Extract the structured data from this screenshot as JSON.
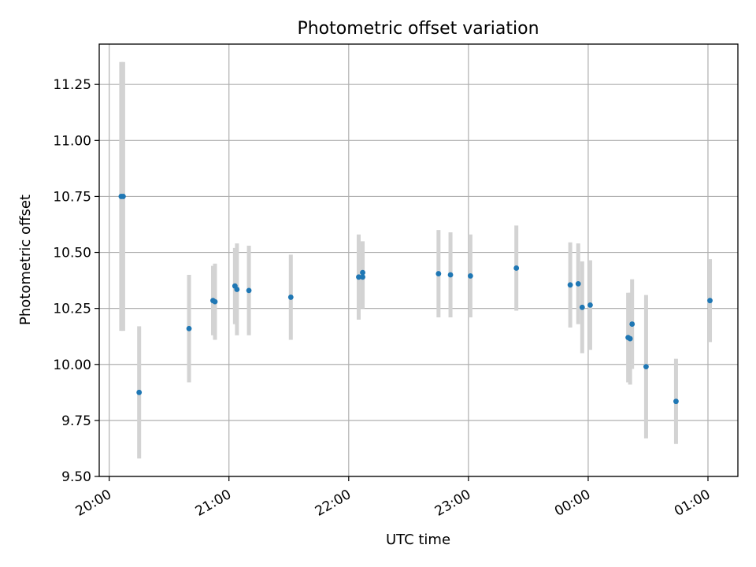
{
  "chart_data": {
    "type": "scatter",
    "title": "Photometric offset variation",
    "xlabel": "UTC time",
    "ylabel": "Photometric offset",
    "ylim": [
      9.5,
      11.43
    ],
    "yticks": [
      9.5,
      9.75,
      10.0,
      10.25,
      10.5,
      10.75,
      11.0,
      11.25
    ],
    "ytick_labels": [
      "9.50",
      "9.75",
      "10.00",
      "10.25",
      "10.50",
      "10.75",
      "11.00",
      "11.25"
    ],
    "xlim": [
      "19:55",
      "01:15"
    ],
    "xticks": [
      "20:00",
      "21:00",
      "22:00",
      "23:00",
      "00:00",
      "01:00"
    ],
    "grid": true,
    "colors": {
      "point": "#1f77b4",
      "errorbar": "#d3d3d3",
      "grid": "#b0b0b0"
    },
    "points": [
      {
        "x": "20:06",
        "y": 10.75,
        "yerr": 0.6
      },
      {
        "x": "20:07",
        "y": 10.75,
        "yerr": 0.6
      },
      {
        "x": "20:15",
        "y": 9.875,
        "yerr": 0.295
      },
      {
        "x": "20:40",
        "y": 10.16,
        "yerr": 0.24
      },
      {
        "x": "20:52",
        "y": 10.285,
        "yerr": 0.155
      },
      {
        "x": "20:53",
        "y": 10.28,
        "yerr": 0.17
      },
      {
        "x": "21:03",
        "y": 10.35,
        "yerr": 0.17
      },
      {
        "x": "21:04",
        "y": 10.335,
        "yerr": 0.205
      },
      {
        "x": "21:10",
        "y": 10.33,
        "yerr": 0.2
      },
      {
        "x": "21:31",
        "y": 10.3,
        "yerr": 0.19
      },
      {
        "x": "22:05",
        "y": 10.39,
        "yerr": 0.19
      },
      {
        "x": "22:07",
        "y": 10.41,
        "yerr": 0.14
      },
      {
        "x": "22:07",
        "y": 10.39,
        "yerr": 0.14
      },
      {
        "x": "22:45",
        "y": 10.405,
        "yerr": 0.195
      },
      {
        "x": "22:51",
        "y": 10.4,
        "yerr": 0.19
      },
      {
        "x": "23:01",
        "y": 10.395,
        "yerr": 0.185
      },
      {
        "x": "23:24",
        "y": 10.43,
        "yerr": 0.19
      },
      {
        "x": "23:51",
        "y": 10.355,
        "yerr": 0.19
      },
      {
        "x": "23:55",
        "y": 10.36,
        "yerr": 0.18
      },
      {
        "x": "23:57",
        "y": 10.255,
        "yerr": 0.205
      },
      {
        "x": "00:01",
        "y": 10.265,
        "yerr": 0.2
      },
      {
        "x": "00:20",
        "y": 10.12,
        "yerr": 0.2
      },
      {
        "x": "00:21",
        "y": 10.115,
        "yerr": 0.205
      },
      {
        "x": "00:22",
        "y": 10.18,
        "yerr": 0.2
      },
      {
        "x": "00:29",
        "y": 9.99,
        "yerr": 0.32
      },
      {
        "x": "00:44",
        "y": 9.835,
        "yerr": 0.19
      },
      {
        "x": "01:01",
        "y": 10.285,
        "yerr": 0.185
      }
    ]
  }
}
